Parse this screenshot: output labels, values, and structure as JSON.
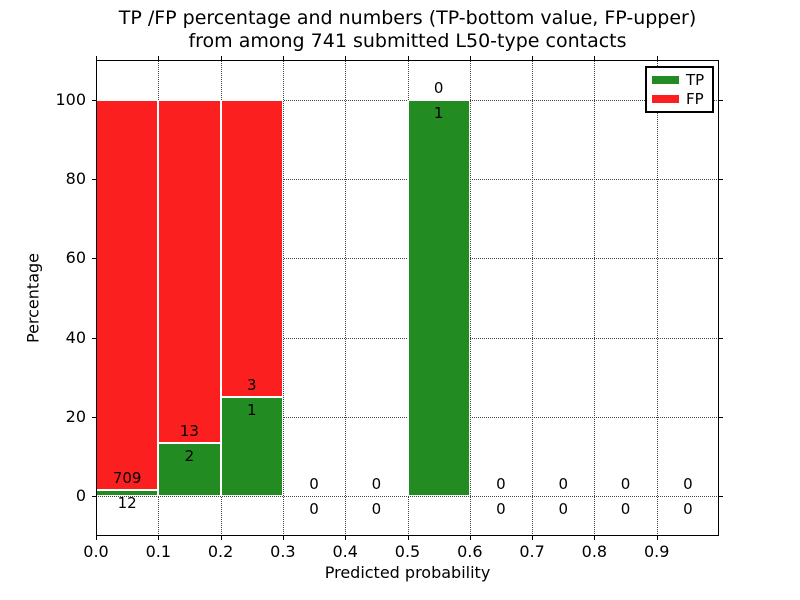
{
  "figure": {
    "title_line1": "TP /FP percentage and numbers (TP-bottom value, FP-upper)",
    "title_line2": "from among 741 submitted L50-type contacts",
    "xlabel": "Predicted probability",
    "ylabel": "Percentage",
    "total_contacts": "741"
  },
  "legend": {
    "position": "upper right",
    "items": [
      {
        "label": "TP",
        "color": "#228b22"
      },
      {
        "label": "FP",
        "color": "#fc1f1f"
      }
    ]
  },
  "chart_data": {
    "type": "bar",
    "stacked": true,
    "title": "TP /FP percentage and numbers (TP-bottom value, FP-upper) from among 741 submitted L50-type contacts",
    "xlabel": "Predicted probability",
    "ylabel": "Percentage",
    "xlim": [
      0,
      1
    ],
    "ylim": [
      -10,
      110
    ],
    "grid": "dotted",
    "legend_position": "upper right",
    "x_ticks": [
      "0.0",
      "0.1",
      "0.2",
      "0.3",
      "0.4",
      "0.5",
      "0.6",
      "0.7",
      "0.8",
      "0.9"
    ],
    "y_ticks": [
      0,
      20,
      40,
      60,
      80,
      100
    ],
    "bin_width": 0.1,
    "series": [
      {
        "name": "TP",
        "color": "#228b22",
        "counts": [
          12,
          2,
          1,
          0,
          0,
          1,
          0,
          0,
          0,
          0
        ]
      },
      {
        "name": "FP",
        "color": "#fc1f1f",
        "counts": [
          709,
          13,
          3,
          0,
          0,
          0,
          0,
          0,
          0,
          0
        ]
      }
    ],
    "bins": [
      {
        "range": "0.0-0.1",
        "tp": 12,
        "fp": 709,
        "tp_pct": 1.66,
        "fp_pct": 98.34
      },
      {
        "range": "0.1-0.2",
        "tp": 2,
        "fp": 13,
        "tp_pct": 13.33,
        "fp_pct": 86.67
      },
      {
        "range": "0.2-0.3",
        "tp": 1,
        "fp": 3,
        "tp_pct": 25.0,
        "fp_pct": 75.0
      },
      {
        "range": "0.3-0.4",
        "tp": 0,
        "fp": 0,
        "tp_pct": null,
        "fp_pct": null
      },
      {
        "range": "0.4-0.5",
        "tp": 0,
        "fp": 0,
        "tp_pct": null,
        "fp_pct": null
      },
      {
        "range": "0.5-0.6",
        "tp": 1,
        "fp": 0,
        "tp_pct": 100.0,
        "fp_pct": 0.0
      },
      {
        "range": "0.6-0.7",
        "tp": 0,
        "fp": 0,
        "tp_pct": null,
        "fp_pct": null
      },
      {
        "range": "0.7-0.8",
        "tp": 0,
        "fp": 0,
        "tp_pct": null,
        "fp_pct": null
      },
      {
        "range": "0.8-0.9",
        "tp": 0,
        "fp": 0,
        "tp_pct": null,
        "fp_pct": null
      },
      {
        "range": "0.9-1.0",
        "tp": 0,
        "fp": 0,
        "tp_pct": null,
        "fp_pct": null
      }
    ]
  }
}
